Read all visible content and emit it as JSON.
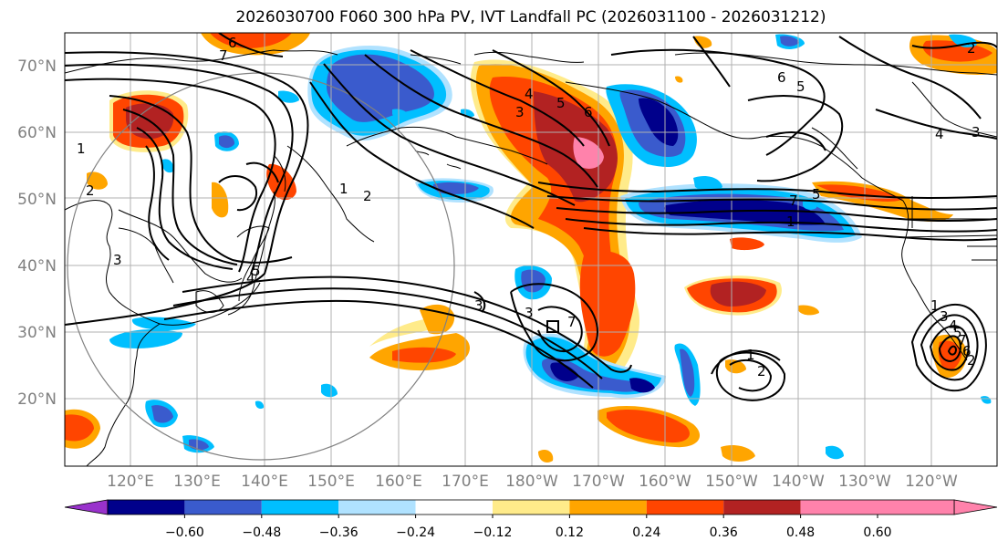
{
  "title": "2026030700 F060 300 hPa PV, IVT Landfall PC (2026031100 - 2026031212)",
  "lat_labels": [
    "70°N",
    "60°N",
    "50°N",
    "40°N",
    "30°N",
    "20°N"
  ],
  "lon_labels": [
    "120°E",
    "130°E",
    "140°E",
    "150°E",
    "160°E",
    "170°E",
    "180°W",
    "170°W",
    "160°W",
    "150°W",
    "140°W",
    "130°W",
    "120°W"
  ],
  "colorbar": {
    "colors": [
      "#9932cc",
      "#00008b",
      "#3a5bcd",
      "#00bfff",
      "#b0e2ff",
      "#ffffff",
      "#ffeb8a",
      "#ffa500",
      "#ff4500",
      "#b22222",
      "#ff82ab"
    ],
    "tick_labels": [
      "−0.60",
      "−0.48",
      "−0.36",
      "−0.24",
      "−0.12",
      "0.12",
      "0.24",
      "0.36",
      "0.48",
      "0.60"
    ]
  },
  "contour_labels": [
    "1",
    "2",
    "3",
    "4",
    "5",
    "6",
    "7",
    "1",
    "2",
    "3",
    "3",
    "7",
    "6",
    "5",
    "4",
    "3",
    "5",
    "6",
    "1",
    "2",
    "7",
    "5",
    "4",
    "3",
    "7",
    "6",
    "5",
    "4",
    "3",
    "2",
    "1",
    "1",
    "2"
  ],
  "colors": {
    "coast": "#000000",
    "grid": "#b0b0b0",
    "axis_text": "#808080",
    "circle": "#808080"
  }
}
